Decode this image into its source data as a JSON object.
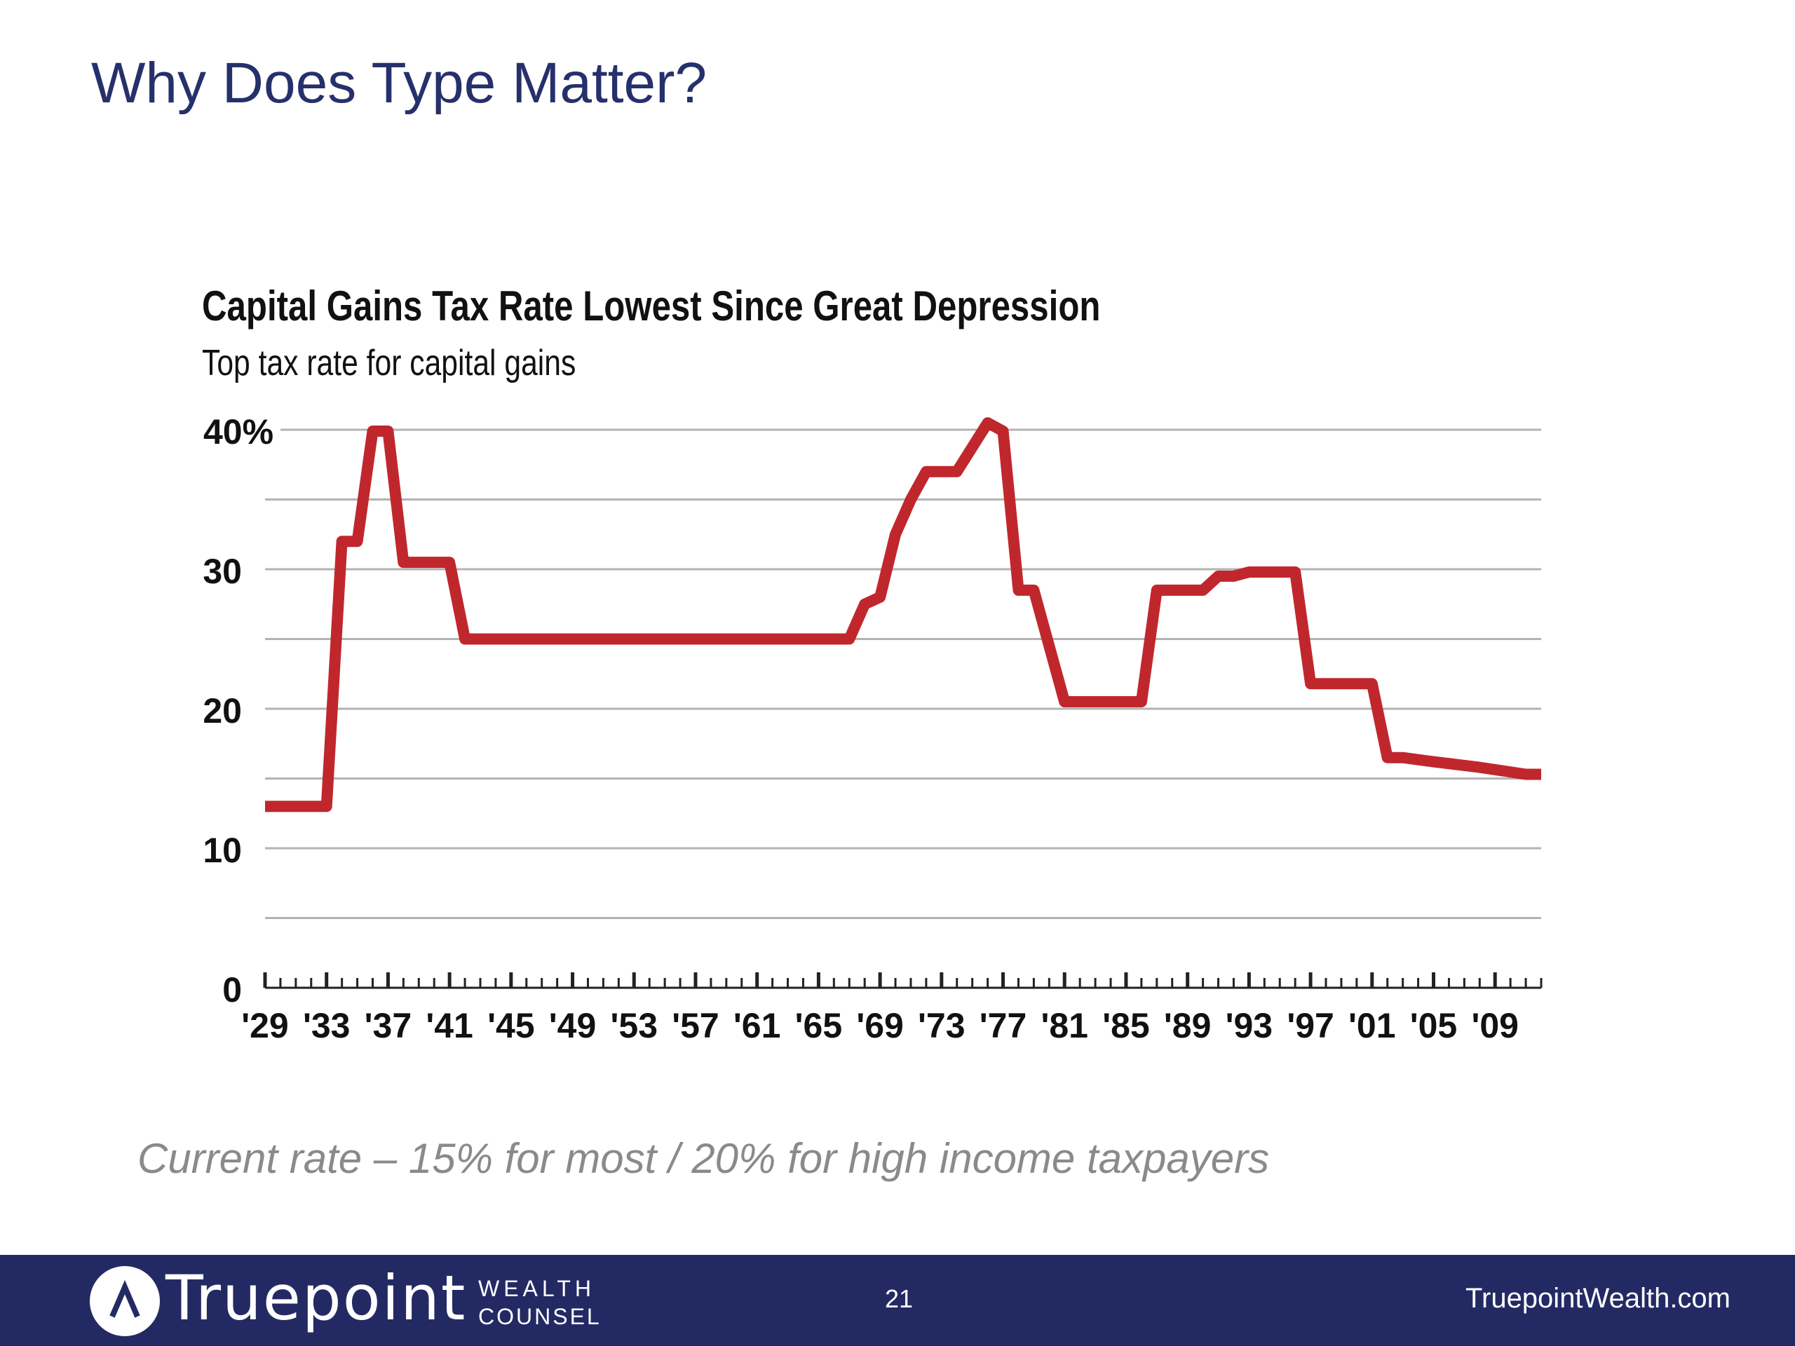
{
  "slide": {
    "title": "Why Does Type Matter?",
    "caption": "Current rate – 15% for most / 20% for high income taxpayers"
  },
  "footer": {
    "brand": "Truepoint",
    "tagline_line1": "WEALTH",
    "tagline_line2": "COUNSEL",
    "page_number": "21",
    "url": "TruepointWealth.com",
    "background_color": "#232a63"
  },
  "chart_data": {
    "type": "line",
    "title": "Capital Gains Tax Rate Lowest Since Great Depression",
    "subtitle": "Top tax rate for capital gains",
    "xlabel": "",
    "ylabel": "",
    "xlim": [
      1929,
      2012
    ],
    "ylim": [
      0,
      40
    ],
    "y_ticks": [
      0,
      10,
      20,
      30,
      40
    ],
    "y_tick_labels": [
      "0",
      "10",
      "20",
      "30",
      "40%"
    ],
    "x_tick_labels": [
      "'29",
      "'33",
      "'37",
      "'41",
      "'45",
      "'49",
      "'53",
      "'57",
      "'61",
      "'65",
      "'69",
      "'73",
      "'77",
      "'81",
      "'85",
      "'89",
      "'93",
      "'97",
      "'01",
      "'05",
      "'09"
    ],
    "x_tick_years": [
      1929,
      1933,
      1937,
      1941,
      1945,
      1949,
      1953,
      1957,
      1961,
      1965,
      1969,
      1973,
      1977,
      1981,
      1985,
      1989,
      1993,
      1997,
      2001,
      2005,
      2009
    ],
    "grid": true,
    "line_color": "#c0272d",
    "series": [
      {
        "x": [
          1929,
          1933,
          1934,
          1935,
          1936,
          1937,
          1938,
          1940,
          1941,
          1942,
          1967,
          1968,
          1969,
          1970,
          1971,
          1972,
          1973,
          1974,
          1976,
          1977,
          1978,
          1979,
          1980,
          1981,
          1982,
          1986,
          1987,
          1990,
          1991,
          1992,
          1993,
          1996,
          1997,
          1998,
          2000,
          2001,
          2002,
          2003,
          2005,
          2008,
          2011,
          2012
        ],
        "y": [
          13,
          13,
          32,
          32,
          39.9,
          39.9,
          30.5,
          30.5,
          30.5,
          25,
          25,
          27.5,
          28,
          32.5,
          35,
          37,
          37,
          37,
          40.5,
          39.9,
          28.5,
          28.5,
          24.5,
          20.5,
          20.5,
          20.5,
          28.5,
          28.5,
          29.5,
          29.5,
          29.8,
          29.8,
          21.8,
          21.8,
          21.8,
          21.8,
          16.5,
          16.5,
          16.2,
          15.8,
          15.3,
          15.3
        ]
      }
    ]
  }
}
